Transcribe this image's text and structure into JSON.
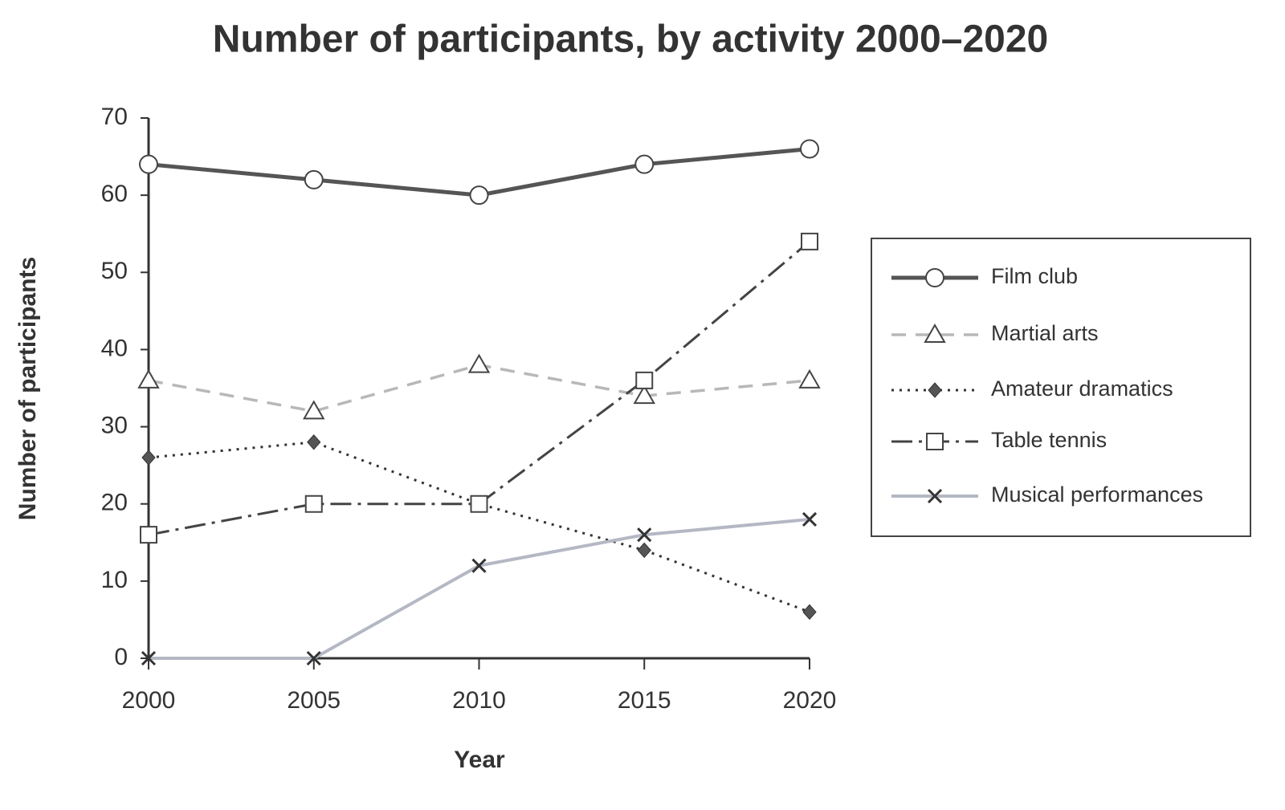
{
  "chart_data": {
    "type": "line",
    "title": "Number of participants, by activity 2000–2020",
    "x_label": "Year",
    "y_label": "Number of participants",
    "x": [
      2000,
      2005,
      2010,
      2015,
      2020
    ],
    "xlim": [
      2000,
      2020
    ],
    "xticks": [
      2000,
      2005,
      2010,
      2015,
      2020
    ],
    "ylim": [
      0,
      70
    ],
    "yticks": [
      0,
      10,
      20,
      30,
      40,
      50,
      60,
      70
    ],
    "legend": "right",
    "series": [
      {
        "name": "Film club",
        "color": "#555555",
        "dash": "solid",
        "marker": "circle",
        "values": [
          64,
          62,
          60,
          64,
          66
        ]
      },
      {
        "name": "Martial arts",
        "color": "#b8b8b8",
        "dash": "dashed",
        "marker": "triangle",
        "values": [
          36,
          32,
          38,
          34,
          36
        ]
      },
      {
        "name": "Amateur dramatics",
        "color": "#333333",
        "dash": "dotted",
        "marker": "diamond",
        "values": [
          26,
          28,
          20,
          14,
          6
        ]
      },
      {
        "name": "Table tennis",
        "color": "#444444",
        "dash": "dashdot",
        "marker": "square",
        "values": [
          16,
          20,
          20,
          36,
          54
        ]
      },
      {
        "name": "Musical performances",
        "color": "#b4b8c4",
        "dash": "solid",
        "marker": "x",
        "values": [
          0,
          0,
          12,
          16,
          18
        ]
      }
    ]
  }
}
